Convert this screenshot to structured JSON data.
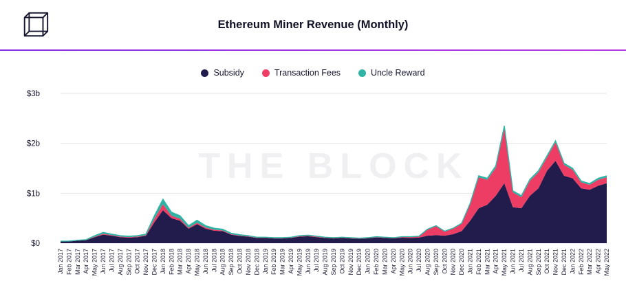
{
  "header": {
    "title": "Ethereum Miner Revenue (Monthly)"
  },
  "colors": {
    "divider_start": "#8a2be2",
    "divider_end": "#b83be0",
    "subsidy": "#221c4d",
    "transaction_fees": "#ee3d64",
    "uncle_reward": "#2eb3a4",
    "watermark": "#f0f0f2",
    "gridline": "#e6e6e9"
  },
  "chart_data": {
    "type": "area",
    "stacked": true,
    "title": "Ethereum Miner Revenue (Monthly)",
    "watermark": "THE BLOCK",
    "xlabel": "",
    "ylabel": "",
    "ylim": [
      0,
      3
    ],
    "grid": true,
    "legend_position": "top-center",
    "yticks": [
      {
        "value": 0,
        "label": "$0"
      },
      {
        "value": 1,
        "label": "$1b"
      },
      {
        "value": 2,
        "label": "$2b"
      },
      {
        "value": 3,
        "label": "$3b"
      }
    ],
    "categories": [
      "Jan 2017",
      "Feb 2017",
      "Mar 2017",
      "Apr 2017",
      "May 2017",
      "Jun 2017",
      "Jul 2017",
      "Aug 2017",
      "Sep 2017",
      "Oct 2017",
      "Nov 2017",
      "Dec 2017",
      "Jan 2018",
      "Feb 2018",
      "Mar 2018",
      "Apr 2018",
      "May 2018",
      "Jun 2018",
      "Jul 2018",
      "Aug 2018",
      "Sep 2018",
      "Oct 2018",
      "Nov 2018",
      "Dec 2018",
      "Jan 2019",
      "Feb 2019",
      "Mar 2019",
      "Apr 2019",
      "May 2019",
      "Jun 2019",
      "Jul 2019",
      "Aug 2019",
      "Sep 2019",
      "Oct 2019",
      "Nov 2019",
      "Dec 2019",
      "Jan 2020",
      "Feb 2020",
      "Mar 2020",
      "Apr 2020",
      "May 2020",
      "Jun 2020",
      "Jul 2020",
      "Aug 2020",
      "Sep 2020",
      "Oct 2020",
      "Nov 2020",
      "Dec 2020",
      "Jan 2021",
      "Feb 2021",
      "Mar 2021",
      "Apr 2021",
      "May 2021",
      "Jun 2021",
      "Jul 2021",
      "Aug 2021",
      "Sep 2021",
      "Oct 2021",
      "Nov 2021",
      "Dec 2021",
      "Jan 2022",
      "Feb 2022",
      "Mar 2022",
      "Apr 2022",
      "May 2022"
    ],
    "series": [
      {
        "name": "Subsidy",
        "color": "#221c4d",
        "values": [
          0.035,
          0.035,
          0.05,
          0.06,
          0.12,
          0.17,
          0.15,
          0.12,
          0.11,
          0.12,
          0.15,
          0.42,
          0.66,
          0.5,
          0.45,
          0.29,
          0.38,
          0.29,
          0.25,
          0.24,
          0.17,
          0.145,
          0.13,
          0.105,
          0.105,
          0.095,
          0.095,
          0.105,
          0.13,
          0.14,
          0.12,
          0.105,
          0.095,
          0.105,
          0.095,
          0.088,
          0.097,
          0.115,
          0.105,
          0.097,
          0.11,
          0.107,
          0.112,
          0.15,
          0.16,
          0.15,
          0.18,
          0.24,
          0.45,
          0.7,
          0.77,
          0.95,
          1.2,
          0.72,
          0.7,
          0.95,
          1.1,
          1.45,
          1.65,
          1.35,
          1.3,
          1.1,
          1.07,
          1.15,
          1.2
        ]
      },
      {
        "name": "Transaction Fees",
        "color": "#ee3d64",
        "values": [
          0.002,
          0.003,
          0.005,
          0.004,
          0.01,
          0.02,
          0.012,
          0.012,
          0.012,
          0.012,
          0.012,
          0.07,
          0.12,
          0.05,
          0.04,
          0.02,
          0.03,
          0.025,
          0.02,
          0.015,
          0.01,
          0.008,
          0.007,
          0.006,
          0.006,
          0.007,
          0.007,
          0.007,
          0.01,
          0.012,
          0.012,
          0.008,
          0.008,
          0.008,
          0.008,
          0.006,
          0.007,
          0.009,
          0.009,
          0.007,
          0.014,
          0.017,
          0.022,
          0.12,
          0.18,
          0.08,
          0.11,
          0.15,
          0.33,
          0.62,
          0.5,
          0.56,
          1.1,
          0.3,
          0.22,
          0.3,
          0.32,
          0.27,
          0.37,
          0.22,
          0.17,
          0.12,
          0.1,
          0.12,
          0.12
        ]
      },
      {
        "name": "Uncle Reward",
        "color": "#2eb3a4",
        "values": [
          0.003,
          0.004,
          0.005,
          0.006,
          0.02,
          0.025,
          0.02,
          0.018,
          0.018,
          0.018,
          0.02,
          0.06,
          0.1,
          0.07,
          0.06,
          0.04,
          0.05,
          0.035,
          0.03,
          0.025,
          0.02,
          0.017,
          0.013,
          0.009,
          0.009,
          0.008,
          0.008,
          0.008,
          0.01,
          0.008,
          0.008,
          0.007,
          0.007,
          0.007,
          0.007,
          0.006,
          0.006,
          0.006,
          0.006,
          0.006,
          0.006,
          0.006,
          0.006,
          0.01,
          0.01,
          0.01,
          0.01,
          0.01,
          0.02,
          0.03,
          0.03,
          0.04,
          0.05,
          0.03,
          0.03,
          0.03,
          0.03,
          0.03,
          0.03,
          0.03,
          0.03,
          0.025,
          0.025,
          0.03,
          0.03
        ]
      }
    ]
  }
}
